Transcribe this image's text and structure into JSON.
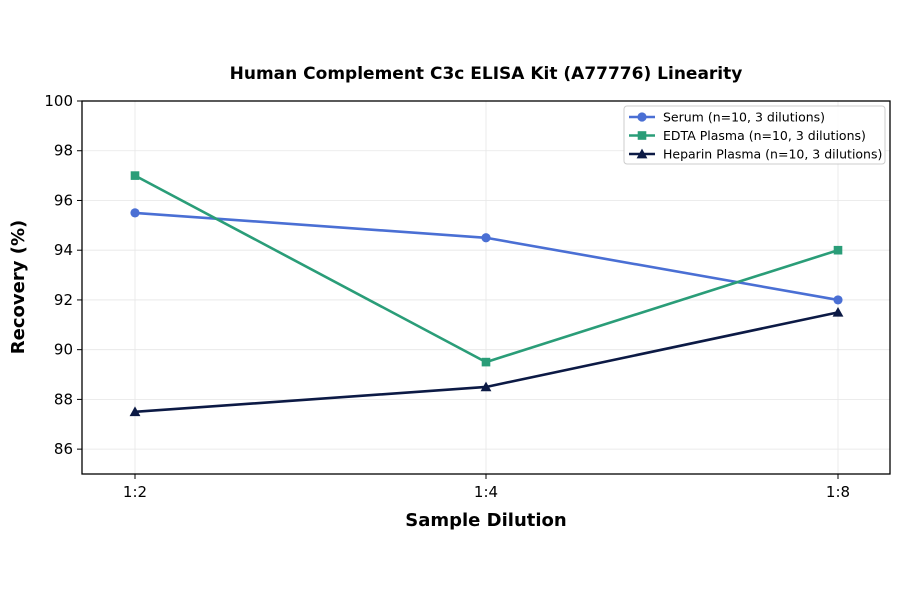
{
  "chart_data": {
    "type": "line",
    "title": "Human Complement C3c ELISA Kit (A77776) Linearity",
    "xlabel": "Sample Dilution",
    "ylabel": "Recovery (%)",
    "categories": [
      "1:2",
      "1:4",
      "1:8"
    ],
    "ylim": [
      85,
      100
    ],
    "yticks": [
      86,
      88,
      90,
      92,
      94,
      96,
      98,
      100
    ],
    "grid": true,
    "legend_position": "top-right",
    "series": [
      {
        "name": "Serum (n=10, 3 dilutions)",
        "values": [
          95.5,
          94.5,
          92.0
        ],
        "color": "#4a6fd4",
        "marker": "circle"
      },
      {
        "name": "EDTA Plasma (n=10, 3 dilutions)",
        "values": [
          97.0,
          89.5,
          94.0
        ],
        "color": "#2a9d78",
        "marker": "square"
      },
      {
        "name": "Heparin Plasma (n=10, 3 dilutions)",
        "values": [
          87.5,
          88.5,
          91.5
        ],
        "color": "#0c1a45",
        "marker": "triangle"
      }
    ]
  }
}
